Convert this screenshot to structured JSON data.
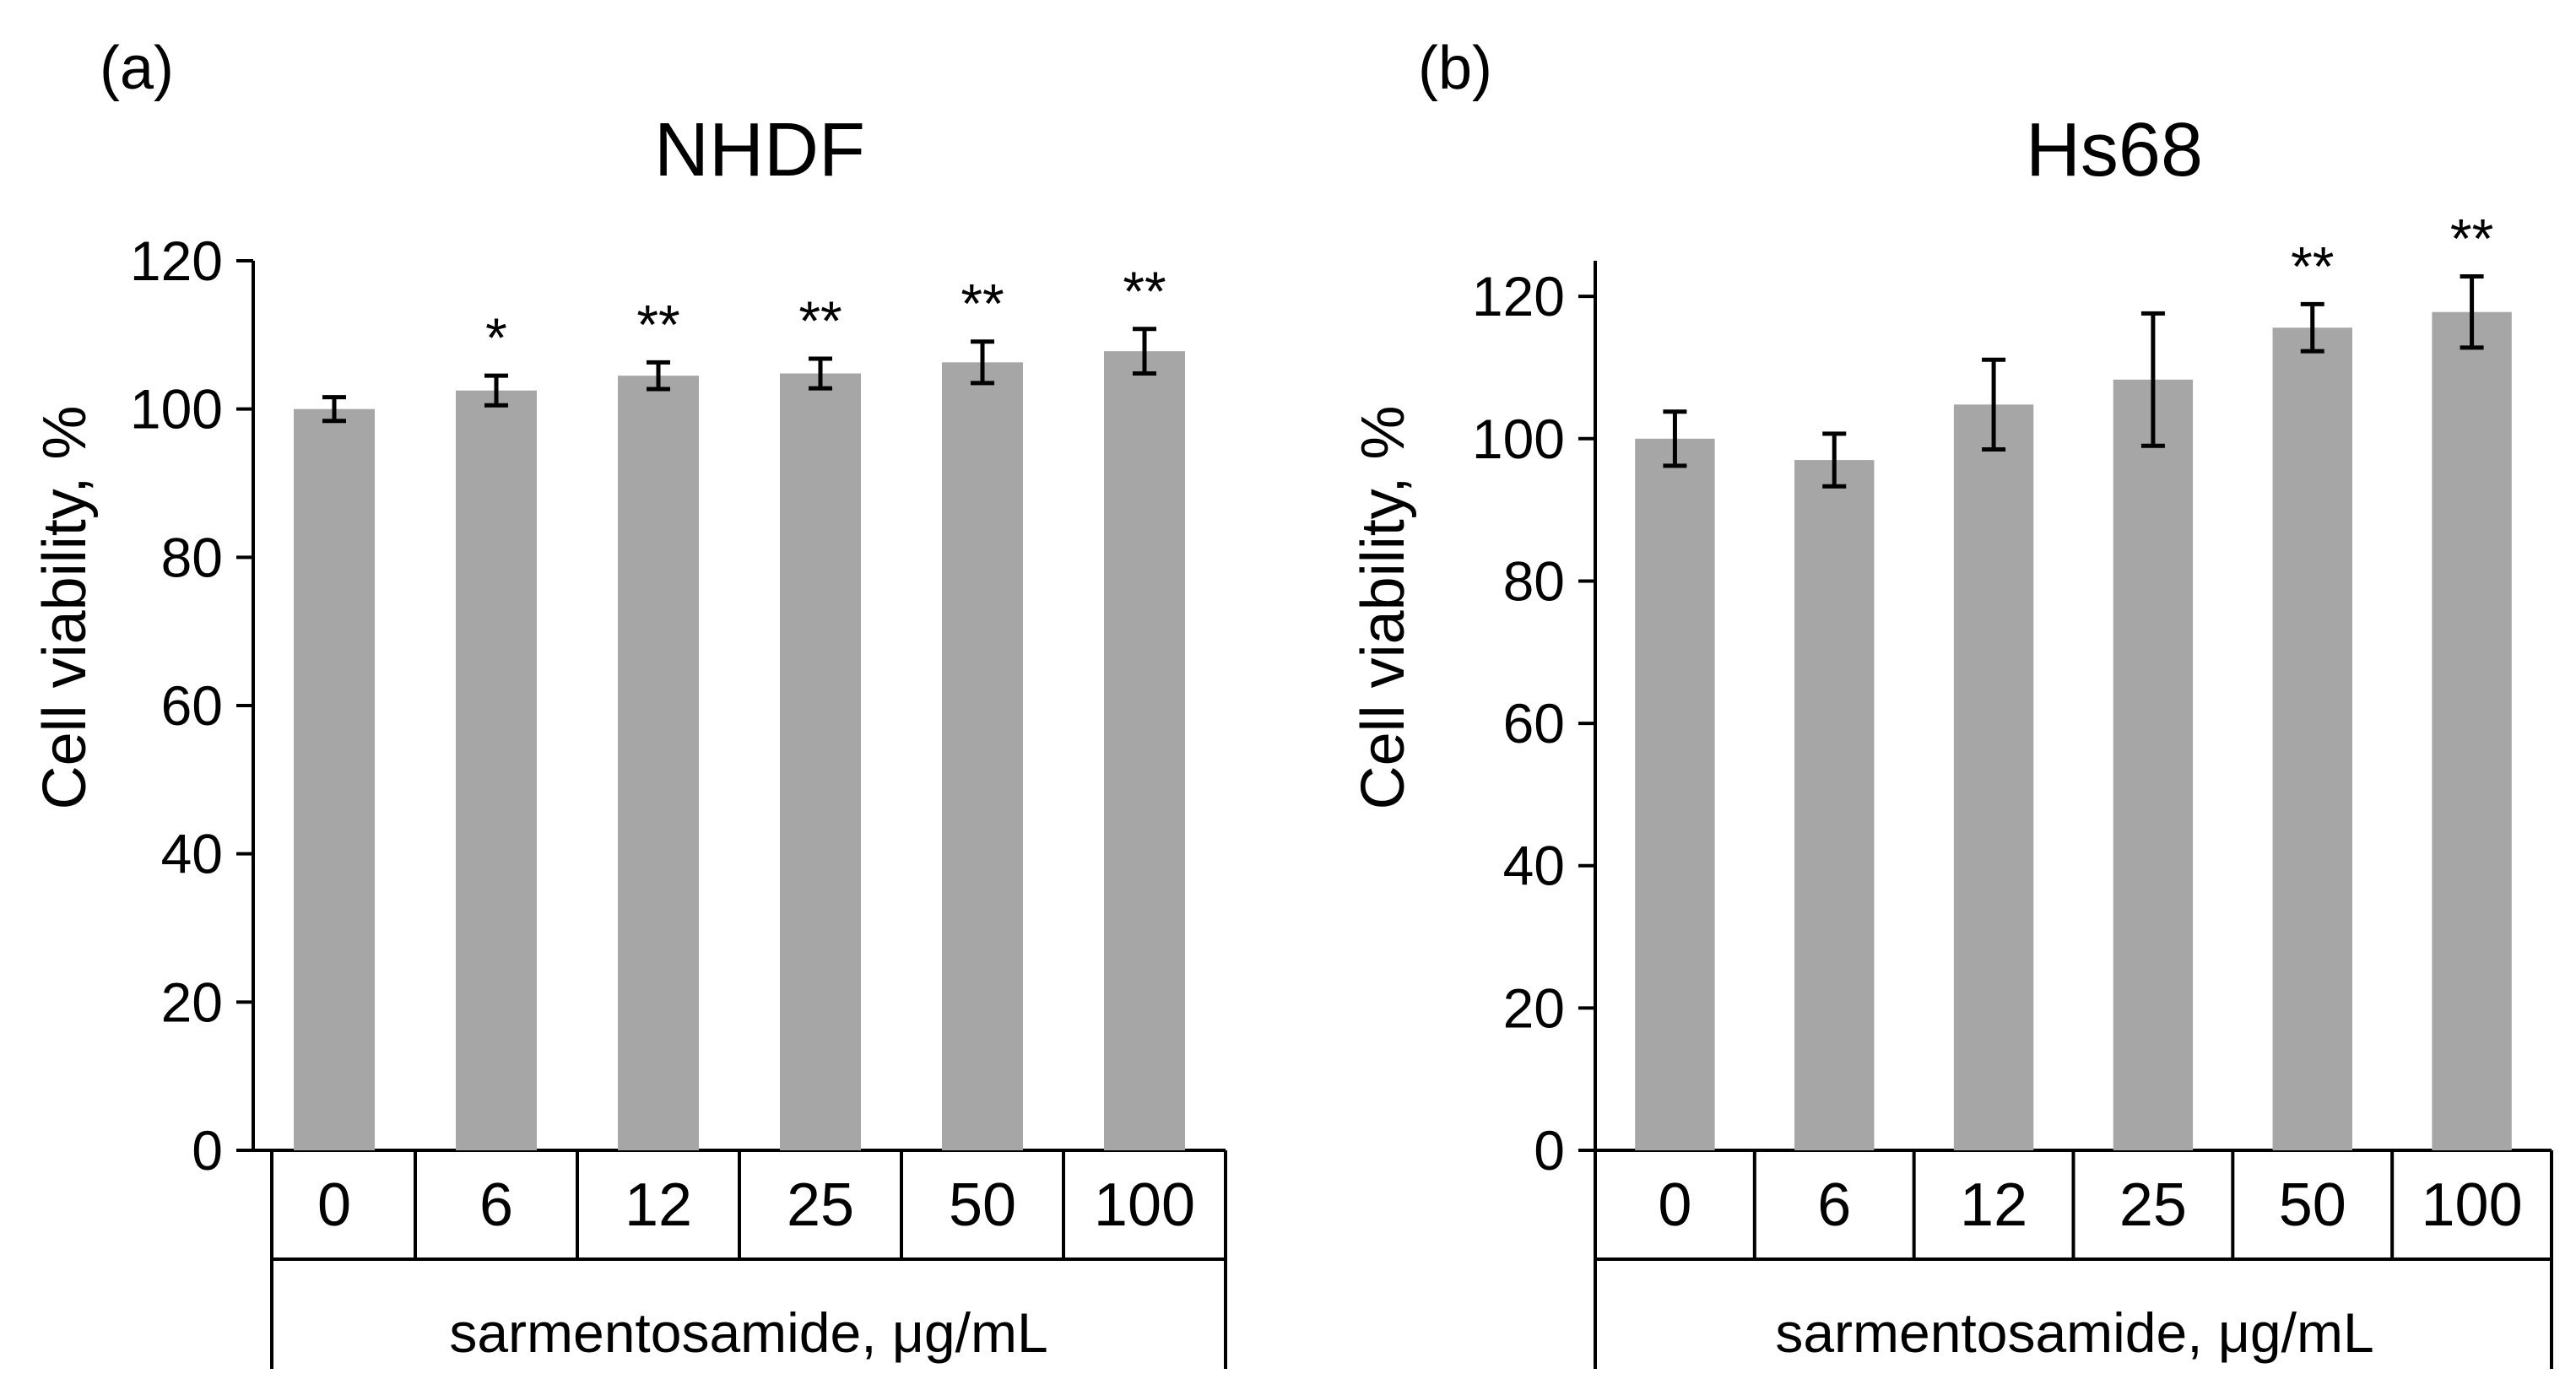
{
  "chart_data": [
    {
      "type": "bar",
      "panel_label": "(a)",
      "title": "NHDF",
      "ylabel": "Cell viability, %",
      "xlabel": "sarmentosamide, μg/mL",
      "ylim": [
        0,
        120
      ],
      "yticks": [
        0,
        20,
        40,
        60,
        80,
        100,
        120
      ],
      "categories": [
        "0",
        "6",
        "12",
        "25",
        "50",
        "100"
      ],
      "values": [
        100,
        102.5,
        104.5,
        104.8,
        106.3,
        107.8
      ],
      "errors": [
        1.6,
        2.0,
        1.8,
        2.0,
        2.8,
        3.0
      ],
      "significance": [
        "",
        "*",
        "**",
        "**",
        "**",
        "**"
      ],
      "bar_color": "#a6a6a6",
      "grid": false,
      "legend": "none"
    },
    {
      "type": "bar",
      "panel_label": "(b)",
      "title": "Hs68",
      "ylabel": "Cell viability, %",
      "xlabel": "sarmentosamide, μg/mL",
      "ylim": [
        0,
        125
      ],
      "yticks": [
        0,
        20,
        40,
        60,
        80,
        100,
        120
      ],
      "categories": [
        "0",
        "6",
        "12",
        "25",
        "50",
        "100"
      ],
      "values": [
        100,
        97,
        104.8,
        108.3,
        115.6,
        117.8
      ],
      "errors": [
        3.8,
        3.7,
        6.3,
        9.3,
        3.3,
        5.0
      ],
      "significance": [
        "",
        "",
        "",
        "",
        "**",
        "**"
      ],
      "bar_color": "#a6a6a6",
      "grid": false,
      "legend": "none"
    }
  ]
}
